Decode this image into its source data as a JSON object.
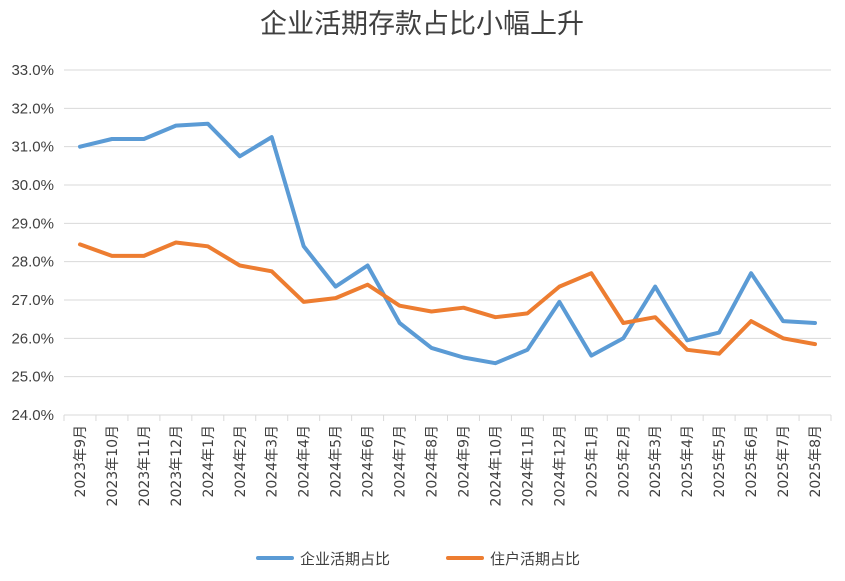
{
  "chart_data": {
    "type": "line",
    "title": "企业活期存款占比小幅上升",
    "xlabel": "",
    "ylabel": "",
    "ylim": [
      24.0,
      33.0
    ],
    "yticks": [
      "24.0%",
      "25.0%",
      "26.0%",
      "27.0%",
      "28.0%",
      "29.0%",
      "30.0%",
      "31.0%",
      "32.0%",
      "33.0%"
    ],
    "grid": "horizontal",
    "legend_position": "bottom",
    "categories": [
      "2023年9月",
      "2023年10月",
      "2023年11月",
      "2023年12月",
      "2024年1月",
      "2024年2月",
      "2024年3月",
      "2024年4月",
      "2024年5月",
      "2024年6月",
      "2024年7月",
      "2024年8月",
      "2024年9月",
      "2024年10月",
      "2024年11月",
      "2024年12月",
      "2025年1月",
      "2025年2月",
      "2025年3月",
      "2025年4月",
      "2025年5月",
      "2025年6月",
      "2025年7月",
      "2025年8月"
    ],
    "series": [
      {
        "name": "企业活期占比",
        "color": "#5b9bd5",
        "values": [
          31.0,
          31.2,
          31.2,
          31.55,
          31.6,
          30.75,
          31.25,
          28.4,
          27.35,
          27.9,
          26.4,
          25.75,
          25.5,
          25.35,
          25.7,
          26.95,
          25.55,
          26.0,
          27.35,
          25.95,
          26.15,
          27.7,
          26.45,
          26.4
        ]
      },
      {
        "name": "住户活期占比",
        "color": "#ed7d31",
        "values": [
          28.45,
          28.15,
          28.15,
          28.5,
          28.4,
          27.9,
          27.75,
          26.95,
          27.05,
          27.4,
          26.85,
          26.7,
          26.8,
          26.55,
          26.65,
          27.35,
          27.7,
          26.4,
          26.55,
          25.7,
          25.6,
          26.45,
          26.0,
          25.85
        ]
      }
    ]
  }
}
